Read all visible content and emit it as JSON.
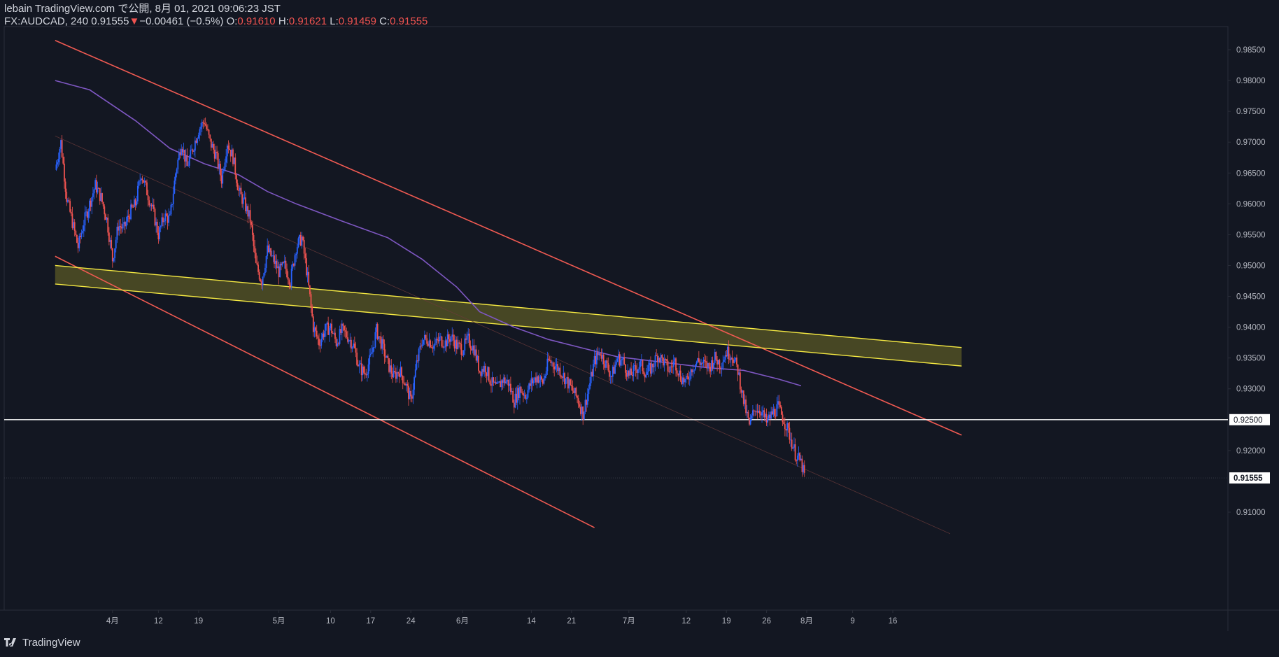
{
  "header": {
    "line1": "lebain TradingView.com で公開, 8月 01, 2021 09:06:23 JST",
    "symbol": "FX:AUDCAD, 240",
    "last": "0.91555",
    "change": "−0.00461 (−0.5%)",
    "o_label": "O:",
    "o_value": "0.91610",
    "h_label": "H:",
    "h_value": "0.91621",
    "l_label": "L:",
    "l_value": "0.91459",
    "c_label": "C:",
    "c_value": "0.91555"
  },
  "footer": {
    "brand": "TradingView",
    "logo_icon": "tradingview-logo-icon"
  },
  "colors": {
    "background": "#131722",
    "up": "#2962ff",
    "down": "#ef5350",
    "channel": "#f05a52",
    "zone": "#f4e842",
    "ma": "#7e57c2",
    "level": "#ffffff"
  },
  "chart_data": {
    "type": "candlestick",
    "symbol": "FX:AUDCAD",
    "timeframe": "240",
    "ylim": [
      0.906,
      0.9875
    ],
    "y_ticks": [
      "0.98500",
      "0.98000",
      "0.97500",
      "0.97000",
      "0.96500",
      "0.96000",
      "0.95500",
      "0.95000",
      "0.94500",
      "0.94000",
      "0.93500",
      "0.93000",
      "0.92000",
      "0.91000"
    ],
    "x_ticks": [
      {
        "label": "4月",
        "day": 4
      },
      {
        "label": "12",
        "day": 12
      },
      {
        "label": "19",
        "day": 19
      },
      {
        "label": "5月",
        "day": 33
      },
      {
        "label": "10",
        "day": 42
      },
      {
        "label": "17",
        "day": 49
      },
      {
        "label": "24",
        "day": 56
      },
      {
        "label": "6月",
        "day": 65
      },
      {
        "label": "14",
        "day": 77
      },
      {
        "label": "21",
        "day": 84
      },
      {
        "label": "7月",
        "day": 94
      },
      {
        "label": "12",
        "day": 104
      },
      {
        "label": "19",
        "day": 111
      },
      {
        "label": "26",
        "day": 118
      },
      {
        "label": "8月",
        "day": 125
      },
      {
        "label": "9",
        "day": 133
      },
      {
        "label": "16",
        "day": 140
      }
    ],
    "price_path": [
      [
        -6,
        0.9655
      ],
      [
        -5,
        0.97
      ],
      [
        -4,
        0.961
      ],
      [
        -3,
        0.957
      ],
      [
        -2,
        0.953
      ],
      [
        -1,
        0.957
      ],
      [
        1,
        0.963
      ],
      [
        2,
        0.961
      ],
      [
        3,
        0.9575
      ],
      [
        4,
        0.951
      ],
      [
        5,
        0.9565
      ],
      [
        6,
        0.956
      ],
      [
        7,
        0.9585
      ],
      [
        8,
        0.96
      ],
      [
        9,
        0.965
      ],
      [
        10,
        0.962
      ],
      [
        11,
        0.959
      ],
      [
        12,
        0.955
      ],
      [
        13,
        0.958
      ],
      [
        14,
        0.9575
      ],
      [
        15,
        0.965
      ],
      [
        16,
        0.97
      ],
      [
        17,
        0.966
      ],
      [
        18,
        0.969
      ],
      [
        19,
        0.972
      ],
      [
        20,
        0.9735
      ],
      [
        21,
        0.97
      ],
      [
        22,
        0.968
      ],
      [
        23,
        0.964
      ],
      [
        24,
        0.97
      ],
      [
        25,
        0.9675
      ],
      [
        26,
        0.962
      ],
      [
        27,
        0.96
      ],
      [
        28,
        0.9575
      ],
      [
        29,
        0.95
      ],
      [
        30,
        0.9475
      ],
      [
        31,
        0.9525
      ],
      [
        32,
        0.951
      ],
      [
        33,
        0.949
      ],
      [
        34,
        0.95
      ],
      [
        35,
        0.9475
      ],
      [
        36,
        0.953
      ],
      [
        37,
        0.9545
      ],
      [
        38,
        0.948
      ],
      [
        39,
        0.94
      ],
      [
        40,
        0.9375
      ],
      [
        41,
        0.9395
      ],
      [
        42,
        0.94
      ],
      [
        43,
        0.9375
      ],
      [
        44,
        0.9395
      ],
      [
        45,
        0.9385
      ],
      [
        46,
        0.937
      ],
      [
        47,
        0.9335
      ],
      [
        48,
        0.9325
      ],
      [
        49,
        0.935
      ],
      [
        50,
        0.9395
      ],
      [
        51,
        0.937
      ],
      [
        52,
        0.934
      ],
      [
        53,
        0.932
      ],
      [
        54,
        0.933
      ],
      [
        55,
        0.931
      ],
      [
        56,
        0.928
      ],
      [
        57,
        0.934
      ],
      [
        58,
        0.938
      ],
      [
        59,
        0.938
      ],
      [
        60,
        0.937
      ],
      [
        61,
        0.938
      ],
      [
        62,
        0.9375
      ],
      [
        63,
        0.9385
      ],
      [
        64,
        0.937
      ],
      [
        65,
        0.9365
      ],
      [
        66,
        0.938
      ],
      [
        67,
        0.9365
      ],
      [
        68,
        0.933
      ],
      [
        69,
        0.9335
      ],
      [
        70,
        0.931
      ],
      [
        71,
        0.93
      ],
      [
        72,
        0.9315
      ],
      [
        73,
        0.931
      ],
      [
        74,
        0.928
      ],
      [
        75,
        0.93
      ],
      [
        76,
        0.929
      ],
      [
        77,
        0.931
      ],
      [
        78,
        0.932
      ],
      [
        79,
        0.931
      ],
      [
        80,
        0.9345
      ],
      [
        81,
        0.934
      ],
      [
        82,
        0.933
      ],
      [
        83,
        0.9315
      ],
      [
        84,
        0.93
      ],
      [
        85,
        0.9285
      ],
      [
        86,
        0.926
      ],
      [
        87,
        0.93
      ],
      [
        88,
        0.9345
      ],
      [
        89,
        0.936
      ],
      [
        90,
        0.934
      ],
      [
        91,
        0.932
      ],
      [
        92,
        0.935
      ],
      [
        93,
        0.9345
      ],
      [
        94,
        0.932
      ],
      [
        95,
        0.933
      ],
      [
        96,
        0.934
      ],
      [
        97,
        0.9325
      ],
      [
        98,
        0.9335
      ],
      [
        99,
        0.9355
      ],
      [
        100,
        0.9345
      ],
      [
        101,
        0.933
      ],
      [
        102,
        0.9345
      ],
      [
        103,
        0.932
      ],
      [
        104,
        0.931
      ],
      [
        105,
        0.9335
      ],
      [
        106,
        0.9345
      ],
      [
        107,
        0.934
      ],
      [
        108,
        0.9335
      ],
      [
        109,
        0.935
      ],
      [
        110,
        0.934
      ],
      [
        111,
        0.936
      ],
      [
        112,
        0.9355
      ],
      [
        113,
        0.933
      ],
      [
        114,
        0.928
      ],
      [
        115,
        0.924
      ],
      [
        116,
        0.927
      ],
      [
        117,
        0.9265
      ],
      [
        118,
        0.9245
      ],
      [
        119,
        0.926
      ],
      [
        120,
        0.927
      ],
      [
        121,
        0.925
      ],
      [
        122,
        0.9225
      ],
      [
        123,
        0.9195
      ],
      [
        124,
        0.918
      ],
      [
        124.7,
        0.91555
      ]
    ],
    "current_price": "0.91555",
    "horizontal_levels": [
      {
        "value": 0.925,
        "label": "0.92500"
      }
    ],
    "trendlines": [
      {
        "name": "channel-top",
        "points": [
          [
            -6,
            0.9865
          ],
          [
            152,
            0.9225
          ]
        ]
      },
      {
        "name": "channel-bottom",
        "points": [
          [
            -6,
            0.9515
          ],
          [
            88,
            0.9075
          ]
        ]
      },
      {
        "name": "zone-top",
        "points": [
          [
            -6,
            0.95
          ],
          [
            152,
            0.9367
          ]
        ]
      },
      {
        "name": "zone-bottom",
        "points": [
          [
            -6,
            0.947
          ],
          [
            152,
            0.9337
          ]
        ]
      },
      {
        "name": "midline",
        "points": [
          [
            -6,
            0.971
          ],
          [
            150,
            0.9065
          ]
        ]
      }
    ],
    "moving_average": {
      "points": [
        [
          -6,
          0.98
        ],
        [
          0,
          0.9785
        ],
        [
          8,
          0.9735
        ],
        [
          14,
          0.969
        ],
        [
          20,
          0.9665
        ],
        [
          26,
          0.9647
        ],
        [
          31,
          0.962
        ],
        [
          36,
          0.96
        ],
        [
          44,
          0.9572
        ],
        [
          52,
          0.9545
        ],
        [
          58,
          0.951
        ],
        [
          64,
          0.9465
        ],
        [
          68,
          0.9425
        ],
        [
          74,
          0.94
        ],
        [
          80,
          0.938
        ],
        [
          86,
          0.9366
        ],
        [
          92,
          0.9352
        ],
        [
          100,
          0.9343
        ],
        [
          108,
          0.9334
        ],
        [
          114,
          0.933
        ],
        [
          120,
          0.9316
        ],
        [
          124,
          0.9305
        ]
      ]
    }
  }
}
